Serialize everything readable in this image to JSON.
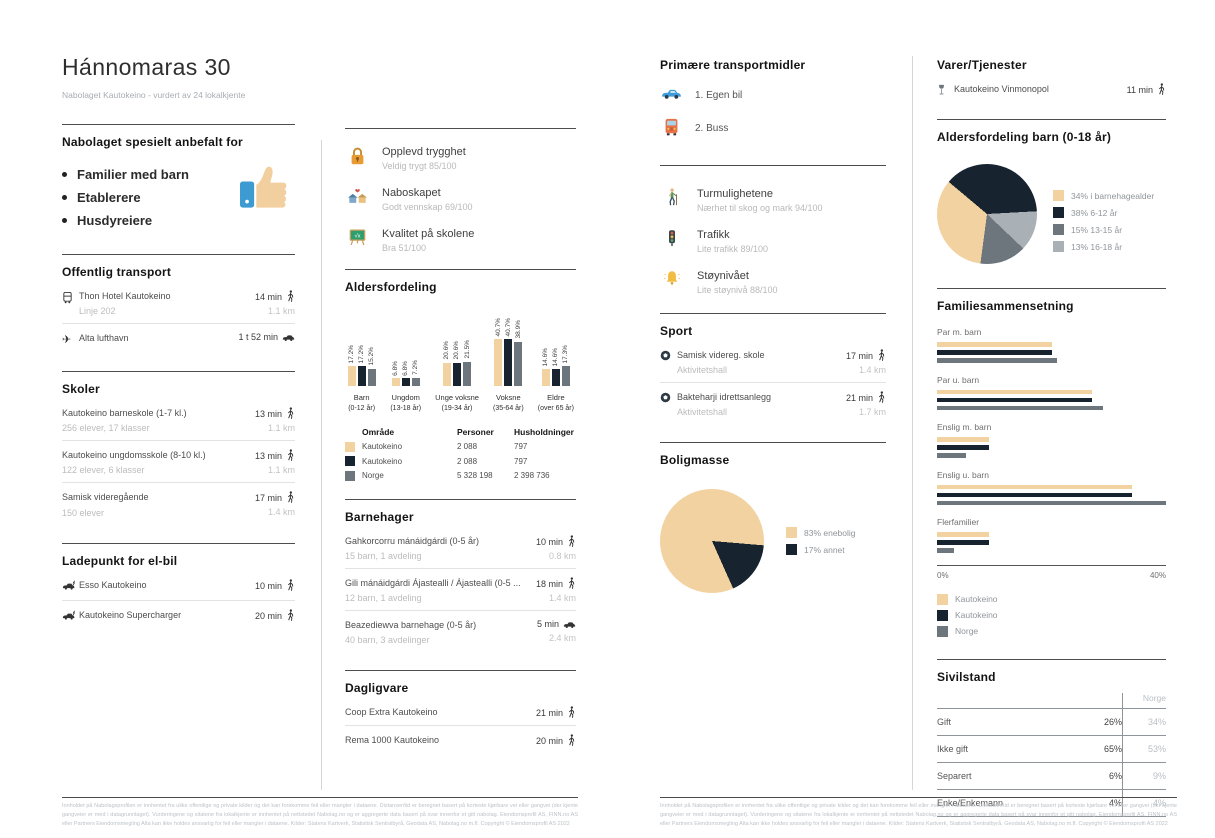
{
  "page": {
    "title": "Hánnomaras 30",
    "subtitle": "Nabolaget Kautokeino - vurdert av 24 lokalkjente"
  },
  "palette": {
    "tan": "#F2D2A0",
    "navy": "#172430",
    "gray": "#6E767D",
    "lightgray": "#A9B0B6"
  },
  "recommended": {
    "heading": "Nabolaget spesielt anbefalt for",
    "items": [
      "Familier med barn",
      "Etablerere",
      "Husdyreiere"
    ]
  },
  "public_transport": {
    "heading": "Offentlig transport",
    "items": [
      {
        "icon": "bus-icon",
        "name": "Thon Hotel Kautokeino",
        "detail": "Linje 202",
        "time": "14 min",
        "mode": "walk",
        "distance": "1.1 km"
      },
      {
        "icon": "plane-icon",
        "name": "Alta lufthavn",
        "time": "1 t 52 min",
        "mode": "car"
      }
    ]
  },
  "schools": {
    "heading": "Skoler",
    "items": [
      {
        "name": "Kautokeino barneskole (1-7 kl.)",
        "detail": "256 elever, 17 klasser",
        "time": "13 min",
        "mode": "walk",
        "distance": "1.1 km"
      },
      {
        "name": "Kautokeino ungdomsskole (8-10 kl.)",
        "detail": "122 elever, 6 klasser",
        "time": "13 min",
        "mode": "walk",
        "distance": "1.1 km"
      },
      {
        "name": "Samisk videregående",
        "detail": "150 elever",
        "time": "17 min",
        "mode": "walk",
        "distance": "1.4 km"
      }
    ]
  },
  "ev_charging": {
    "heading": "Ladepunkt for el-bil",
    "items": [
      {
        "icon": "ev-charger-icon",
        "name": "Esso Kautokeino",
        "time": "10 min",
        "mode": "walk"
      },
      {
        "icon": "ev-charger-icon",
        "name": "Kautokeino Supercharger",
        "time": "20 min",
        "mode": "walk"
      }
    ]
  },
  "ratings": {
    "items": [
      {
        "icon": "lock-icon",
        "title": "Opplevd trygghet",
        "subtitle": "Veldig trygt 85/100"
      },
      {
        "icon": "neighbourhood-icon",
        "title": "Naboskapet",
        "subtitle": "Godt vennskap 69/100"
      },
      {
        "icon": "school-quality-icon",
        "title": "Kvalitet på skolene",
        "subtitle": "Bra 51/100"
      }
    ]
  },
  "chart_data": [
    {
      "id": "age_distribution",
      "type": "bar",
      "title": "Aldersfordeling",
      "categories": [
        "Barn",
        "Ungdom",
        "Unge voksne",
        "Voksne",
        "Eldre"
      ],
      "category_sublabels": [
        "(0-12 år)",
        "(13-18 år)",
        "(19-34 år)",
        "(35-64 år)",
        "(over 65 år)"
      ],
      "series": [
        {
          "name": "Kautokeino",
          "color": "tan",
          "values": [
            17.2,
            6.8,
            20.6,
            40.7,
            14.6
          ]
        },
        {
          "name": "Kautokeino",
          "color": "navy",
          "values": [
            17.2,
            6.8,
            20.6,
            40.7,
            14.6
          ]
        },
        {
          "name": "Norge",
          "color": "gray",
          "values": [
            15.2,
            7.2,
            21.5,
            38.9,
            17.3
          ]
        }
      ],
      "value_suffix": "%",
      "ylim": [
        0,
        45
      ]
    },
    {
      "id": "housing",
      "type": "pie",
      "title": "Boligmasse",
      "start_angle": 156,
      "slices": [
        {
          "label": "83% enebolig",
          "value": 83,
          "color": "tan"
        },
        {
          "label": "17% annet",
          "value": 17,
          "color": "navy"
        }
      ]
    },
    {
      "id": "children_age",
      "type": "pie",
      "title": "Aldersfordeling barn (0-18 år)",
      "start_angle": -50,
      "slices": [
        {
          "label": "38% 6-12 år",
          "value": 38,
          "color": "navy"
        },
        {
          "label": "13% 16-18 år",
          "value": 13,
          "color": "lightgray"
        },
        {
          "label": "15% 13-15 år",
          "value": 15,
          "color": "gray"
        },
        {
          "label": "34% i barnehagealder",
          "value": 34,
          "color": "tan"
        }
      ],
      "legend_order": [
        3,
        0,
        2,
        1
      ]
    },
    {
      "id": "family_composition",
      "type": "bar-horizontal",
      "title": "Familiesammensetning",
      "categories": [
        "Par m. barn",
        "Par u. barn",
        "Enslig m. barn",
        "Enslig u. barn",
        "Flerfamilier"
      ],
      "series": [
        {
          "name": "Kautokeino",
          "color": "tan",
          "values": [
            20,
            27,
            9,
            34,
            9
          ]
        },
        {
          "name": "Kautokeino",
          "color": "navy",
          "values": [
            20,
            27,
            9,
            34,
            9
          ]
        },
        {
          "name": "Norge",
          "color": "gray",
          "values": [
            21,
            29,
            5,
            40,
            3
          ]
        }
      ],
      "xlim": [
        0,
        40
      ],
      "x_axis_labels": [
        "0%",
        "40%"
      ]
    }
  ],
  "population_table": {
    "headers": [
      "Område",
      "Personer",
      "Husholdninger"
    ],
    "rows": [
      {
        "color": "tan",
        "area": "Kautokeino",
        "persons": "2 088",
        "households": "797"
      },
      {
        "color": "navy",
        "area": "Kautokeino",
        "persons": "2 088",
        "households": "797"
      },
      {
        "color": "gray",
        "area": "Norge",
        "persons": "5 328 198",
        "households": "2 398 736"
      }
    ]
  },
  "kindergartens": {
    "heading": "Barnehager",
    "items": [
      {
        "name": "Gahkorcorru mánáidgárdi (0-5 år)",
        "detail": "15 barn, 1 avdeling",
        "time": "10 min",
        "mode": "walk",
        "distance": "0.8 km"
      },
      {
        "name": "Gili mánáidgárdi Ájastealli / Ájastealli (0-5 ...",
        "detail": "12 barn, 1 avdeling",
        "time": "18 min",
        "mode": "walk",
        "distance": "1.4 km"
      },
      {
        "name": "Beazediewva barnehage (0-5 år)",
        "detail": "40 barn, 3 avdelinger",
        "time": "5 min",
        "mode": "car",
        "distance": "2.4 km"
      }
    ]
  },
  "groceries": {
    "heading": "Dagligvare",
    "items": [
      {
        "name": "Coop Extra Kautokeino",
        "time": "21 min",
        "mode": "walk"
      },
      {
        "name": "Rema 1000 Kautokeino",
        "time": "20 min",
        "mode": "walk"
      }
    ]
  },
  "transport_modes": {
    "heading": "Primære transportmidler",
    "items": [
      {
        "icon": "car-icon",
        "label": "1. Egen bil"
      },
      {
        "icon": "bus-icon",
        "label": "2. Buss"
      }
    ]
  },
  "environment": {
    "items": [
      {
        "icon": "hiking-icon",
        "title": "Turmulighetene",
        "subtitle": "Nærhet til skog og mark 94/100"
      },
      {
        "icon": "traffic-light-icon",
        "title": "Trafikk",
        "subtitle": "Lite trafikk 89/100"
      },
      {
        "icon": "bell-icon",
        "title": "Støynivået",
        "subtitle": "Lite støynivå 88/100"
      }
    ]
  },
  "sport": {
    "heading": "Sport",
    "items": [
      {
        "icon": "soccer-icon",
        "name": "Samisk videreg. skole",
        "detail": "Aktivitetshall",
        "time": "17 min",
        "mode": "walk",
        "distance": "1.4 km"
      },
      {
        "icon": "soccer-icon",
        "name": "Bakteharji idrettsanlegg",
        "detail": "Aktivitetshall",
        "time": "21 min",
        "mode": "walk",
        "distance": "1.7 km"
      }
    ]
  },
  "goods_services": {
    "heading": "Varer/Tjenester",
    "items": [
      {
        "icon": "wine-glass-icon",
        "name": "Kautokeino Vinmonopol",
        "time": "11 min",
        "mode": "walk"
      }
    ]
  },
  "civil_status": {
    "heading": "Sivilstand",
    "norge_header": "Norge",
    "rows": [
      {
        "label": "Gift",
        "local": "26%",
        "norge": "34%"
      },
      {
        "label": "Ikke gift",
        "local": "65%",
        "norge": "53%"
      },
      {
        "label": "Separert",
        "local": "6%",
        "norge": "9%"
      },
      {
        "label": "Enke/Enkemann",
        "local": "4%",
        "norge": "4%"
      }
    ]
  },
  "footer": {
    "text": "Innholdet på Nabolagsprofilen er innhentet fra ulike offentlige og private kilder og det kan forekomme feil eller mangler i dataene. Distanser/tid er beregnet basert på korteste kjørbare vei eller gangvei (der kjente gangveier er med i datagrunnlaget). Vurderingene og sitatene fra lokalkjente er innhentet på nettstedet Nabolag.no og er aggregerte data basert på svar innenfor et gitt nabolag. Eiendomsprofil AS, FINN.no AS eller Partners Eiendomsmegling Alta kan ikke holdes ansvarlig for feil eller mangler i dataene. Kilder: Statens Kartverk, Statistisk Sentralbyrå, Geodata AS, Nabolag.no m.fl. Copyright © Eiendomsprofil AS 2022"
  }
}
